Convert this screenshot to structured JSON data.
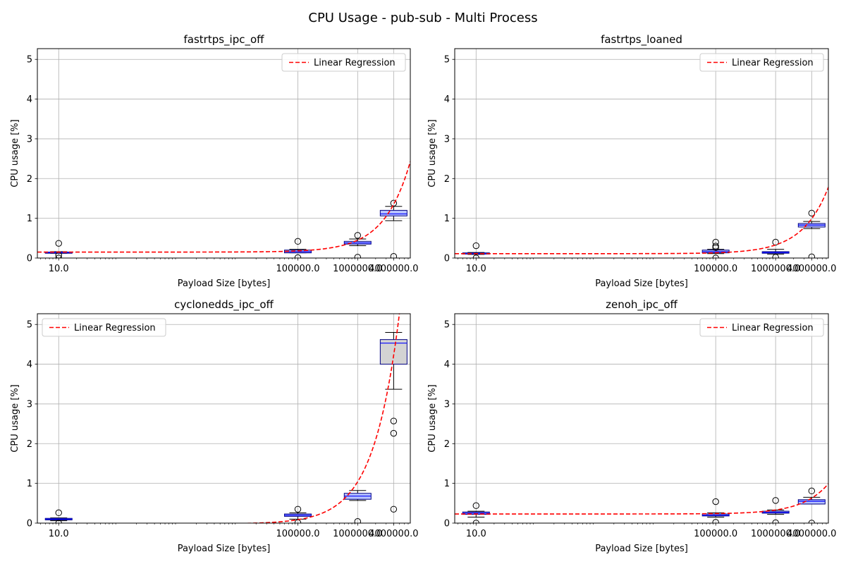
{
  "figure": {
    "title": "CPU Usage - pub-sub - Multi Process"
  },
  "colors": {
    "regression": "#ff0000",
    "box_fill": "#b8c4ff",
    "box_fill_grey": "#d3d3d3",
    "median": "#0000ff",
    "box_edge": "#000080",
    "grid": "#b0b0b0"
  },
  "chart_data": [
    {
      "type": "box",
      "title": "fastrtps_ipc_off",
      "xlabel": "Payload Size [bytes]",
      "ylabel": "CPU usage [%]",
      "xscale": "log",
      "xlim": [
        4.4,
        7600000
      ],
      "ylim": [
        0,
        5.27
      ],
      "xticks": [
        {
          "value": 10,
          "label": "10.0"
        },
        {
          "value": 100000,
          "label": "100000.0"
        },
        {
          "value": 1000000,
          "label": "1000000.0"
        },
        {
          "value": 4000000,
          "label": "4000000.0"
        }
      ],
      "yticks": [
        0,
        1,
        2,
        3,
        4,
        5
      ],
      "legend": {
        "label": "Linear Regression",
        "position": "upper right"
      },
      "boxes": [
        {
          "x": 10,
          "q1": 0.12,
          "median": 0.14,
          "q3": 0.15,
          "whisker_low": 0.12,
          "whisker_high": 0.16,
          "outliers": [
            0.37,
            0.07,
            0.0
          ],
          "grey": false
        },
        {
          "x": 100000,
          "q1": 0.13,
          "median": 0.16,
          "q3": 0.2,
          "whisker_low": 0.13,
          "whisker_high": 0.22,
          "outliers": [
            0.42,
            0.01
          ],
          "grey": false
        },
        {
          "x": 1000000,
          "q1": 0.35,
          "median": 0.38,
          "q3": 0.42,
          "whisker_low": 0.31,
          "whisker_high": 0.48,
          "outliers": [
            0.57,
            0.02
          ],
          "grey": false
        },
        {
          "x": 4000000,
          "q1": 1.06,
          "median": 1.11,
          "q3": 1.2,
          "whisker_low": 0.94,
          "whisker_high": 1.3,
          "outliers": [
            1.38,
            0.04
          ],
          "grey": false
        }
      ],
      "regression": {
        "intercept": 0.15,
        "slope_per_byte": 3e-07
      }
    },
    {
      "type": "box",
      "title": "fastrtps_loaned",
      "xlabel": "Payload Size [bytes]",
      "ylabel": "CPU usage [%]",
      "xscale": "log",
      "xlim": [
        4.4,
        7600000
      ],
      "ylim": [
        0,
        5.27
      ],
      "xticks": [
        {
          "value": 10,
          "label": "10.0"
        },
        {
          "value": 100000,
          "label": "100000.0"
        },
        {
          "value": 1000000,
          "label": "1000000.0"
        },
        {
          "value": 4000000,
          "label": "4000000.0"
        }
      ],
      "yticks": [
        0,
        1,
        2,
        3,
        4,
        5
      ],
      "legend": {
        "label": "Linear Regression",
        "position": "upper right"
      },
      "boxes": [
        {
          "x": 10,
          "q1": 0.1,
          "median": 0.11,
          "q3": 0.13,
          "whisker_low": 0.09,
          "whisker_high": 0.14,
          "outliers": [
            0.31,
            0.0
          ],
          "grey": false
        },
        {
          "x": 100000,
          "q1": 0.13,
          "median": 0.16,
          "q3": 0.2,
          "whisker_low": 0.11,
          "whisker_high": 0.22,
          "outliers": [
            0.4,
            0.3,
            0.26,
            0.0
          ],
          "grey": false
        },
        {
          "x": 1000000,
          "q1": 0.12,
          "median": 0.14,
          "q3": 0.16,
          "whisker_low": 0.1,
          "whisker_high": 0.22,
          "outliers": [
            0.4,
            0.02
          ],
          "grey": false
        },
        {
          "x": 4000000,
          "q1": 0.78,
          "median": 0.83,
          "q3": 0.87,
          "whisker_low": 0.74,
          "whisker_high": 0.92,
          "outliers": [
            1.13,
            0.03
          ],
          "grey": false
        }
      ],
      "regression": {
        "intercept": 0.11,
        "slope_per_byte": 2.2e-07
      }
    },
    {
      "type": "box",
      "title": "cyclonedds_ipc_off",
      "xlabel": "Payload Size [bytes]",
      "ylabel": "CPU usage [%]",
      "xscale": "log",
      "xlim": [
        4.4,
        7600000
      ],
      "ylim": [
        0,
        5.27
      ],
      "xticks": [
        {
          "value": 10,
          "label": "10.0"
        },
        {
          "value": 100000,
          "label": "100000.0"
        },
        {
          "value": 1000000,
          "label": "1000000.0"
        },
        {
          "value": 4000000,
          "label": "4000000.0"
        }
      ],
      "yticks": [
        0,
        1,
        2,
        3,
        4,
        5
      ],
      "legend": {
        "label": "Linear Regression",
        "position": "upper left"
      },
      "boxes": [
        {
          "x": 10,
          "q1": 0.08,
          "median": 0.1,
          "q3": 0.12,
          "whisker_low": 0.06,
          "whisker_high": 0.13,
          "outliers": [
            0.26,
            0.0
          ],
          "grey": false
        },
        {
          "x": 100000,
          "q1": 0.17,
          "median": 0.2,
          "q3": 0.23,
          "whisker_low": 0.1,
          "whisker_high": 0.26,
          "outliers": [
            0.35,
            0.01
          ],
          "grey": false
        },
        {
          "x": 1000000,
          "q1": 0.6,
          "median": 0.68,
          "q3": 0.75,
          "whisker_low": 0.57,
          "whisker_high": 0.82,
          "outliers": [
            0.04
          ],
          "grey": false
        },
        {
          "x": 4000000,
          "q1": 4.0,
          "median": 4.53,
          "q3": 4.62,
          "whisker_low": 3.37,
          "whisker_high": 4.8,
          "outliers": [
            2.57,
            2.26,
            0.35
          ],
          "grey": true
        }
      ],
      "regression": {
        "intercept": -0.02,
        "slope_per_byte": 1.06e-06
      }
    },
    {
      "type": "box",
      "title": "zenoh_ipc_off",
      "xlabel": "Payload Size [bytes]",
      "ylabel": "CPU usage [%]",
      "xscale": "log",
      "xlim": [
        4.4,
        7600000
      ],
      "ylim": [
        0,
        5.27
      ],
      "xticks": [
        {
          "value": 10,
          "label": "10.0"
        },
        {
          "value": 100000,
          "label": "100000.0"
        },
        {
          "value": 1000000,
          "label": "1000000.0"
        },
        {
          "value": 4000000,
          "label": "4000000.0"
        }
      ],
      "yticks": [
        0,
        1,
        2,
        3,
        4,
        5
      ],
      "legend": {
        "label": "Linear Regression",
        "position": "upper right"
      },
      "boxes": [
        {
          "x": 10,
          "q1": 0.22,
          "median": 0.25,
          "q3": 0.28,
          "whisker_low": 0.15,
          "whisker_high": 0.3,
          "outliers": [
            0.44,
            0.0
          ],
          "grey": false
        },
        {
          "x": 100000,
          "q1": 0.18,
          "median": 0.2,
          "q3": 0.23,
          "whisker_low": 0.15,
          "whisker_high": 0.26,
          "outliers": [
            0.54,
            0.02
          ],
          "grey": false
        },
        {
          "x": 1000000,
          "q1": 0.25,
          "median": 0.27,
          "q3": 0.3,
          "whisker_low": 0.22,
          "whisker_high": 0.33,
          "outliers": [
            0.57,
            0.01
          ],
          "grey": false
        },
        {
          "x": 4000000,
          "q1": 0.48,
          "median": 0.55,
          "q3": 0.59,
          "whisker_low": 0.48,
          "whisker_high": 0.65,
          "outliers": [
            0.81,
            0.0
          ],
          "grey": false
        }
      ],
      "regression": {
        "intercept": 0.23,
        "slope_per_byte": 1e-07
      }
    }
  ]
}
